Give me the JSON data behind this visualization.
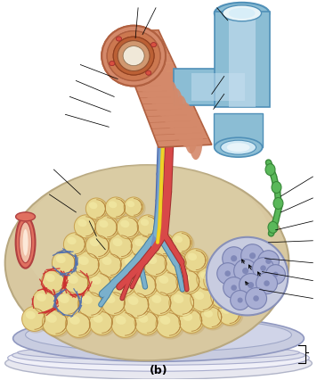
{
  "label_b": "(b)",
  "bg_color": "#ffffff",
  "bronchus_salmon": "#d4896a",
  "bronchus_dark": "#b06040",
  "bronchus_light": "#e8aa88",
  "airway_blue": "#8bbdd4",
  "airway_dark": "#5090b8",
  "airway_light": "#c8e0f0",
  "airway_lumen": "#e8f4f8",
  "alv_yellow": "#e8d890",
  "alv_edge": "#c8a050",
  "alv_stripe": "#b88840",
  "alv_highlight": "#f5eeaa",
  "alv_shadow": "#c0a040",
  "cap_red": "#d84040",
  "cap_blue": "#5878b8",
  "artery_red": "#d84848",
  "artery_dark": "#a03030",
  "vein_blue": "#7090c8",
  "vein_dark": "#4868a8",
  "bronchiole_blue": "#7ab0cc",
  "bronchiole_dark": "#4880a0",
  "nerve_yellow": "#f0d428",
  "lymph_green": "#5ab85a",
  "lymph_dark": "#388838",
  "alv_sac_bg": "#b8bcd8",
  "alv_sac_cell": "#9098c0",
  "alv_sac_outline": "#7080a8",
  "lobule_tan": "#d8c8a0",
  "lobule_edge": "#b8a880",
  "floor_lavender": "#c8cce0",
  "floor_white": "#e8eaf4",
  "pleura_white": "#f0f0f8",
  "left_artery": "#e07060",
  "left_artery_dark": "#b04040",
  "annotation_color": "#000000",
  "mesh_red": "#cc3030",
  "mesh_blue": "#5070b0"
}
